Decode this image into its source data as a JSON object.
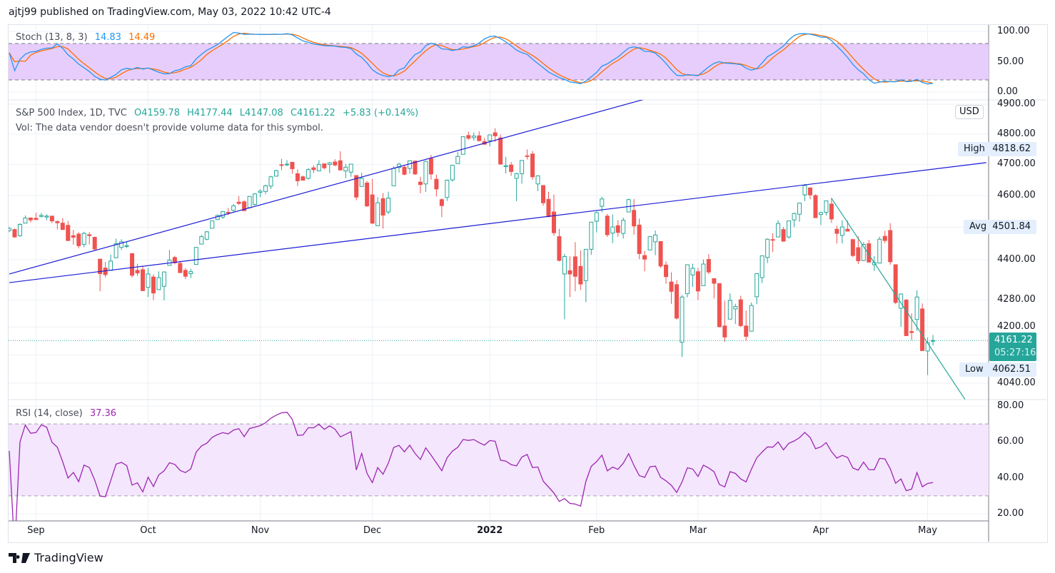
{
  "header": {
    "published": "ajtj99 published on TradingView.com, May 03, 2022 10:42 UTC-4"
  },
  "legend": {
    "symbol": "S&P 500 Index, 1D, TVC",
    "open": "O4159.78",
    "high": "H4177.44",
    "low": "L4147.08",
    "close": "C4161.22",
    "change": "+5.83 (+0.14%)",
    "volume_note": "Vol: The data vendor doesn't provide volume data for this symbol.",
    "stoch_label": "Stoch (13, 8, 3)",
    "stoch_k": "14.83",
    "stoch_d": "14.49",
    "rsi_label": "RSI (14, close)",
    "rsi_value": "37.36"
  },
  "price_axis": {
    "currency": "USD",
    "ticks": [
      "4900.00",
      "4800.00",
      "4700.00",
      "4600.00",
      "4400.00",
      "4280.00",
      "4200.00",
      "4040.00"
    ],
    "high_label": "High",
    "high_value": "4818.62",
    "avg_label": "Avg",
    "avg_value": "4501.84",
    "low_label": "Low",
    "low_value": "4062.51",
    "last_price": "4161.22",
    "countdown": "05:27:16"
  },
  "stoch_axis": {
    "ticks": [
      "100.00",
      "50.00",
      "0.00"
    ]
  },
  "rsi_axis": {
    "ticks": [
      "80.00",
      "60.00",
      "40.00",
      "20.00"
    ]
  },
  "time_axis": {
    "labels": [
      "Sep",
      "Oct",
      "Nov",
      "Dec",
      "2022",
      "Feb",
      "Mar",
      "Apr",
      "May"
    ]
  },
  "footer": {
    "brand": "TradingView"
  },
  "colors": {
    "up": "#26a69a",
    "down": "#ef5350",
    "stoch_k": "#2196f3",
    "stoch_d": "#ff6d00",
    "rsi": "#9c27b0",
    "trendline": "#1c1cd6",
    "trendline_green": "#26a69a"
  },
  "chart_data": {
    "type": "candlestick",
    "scale": "log",
    "indicators": [
      {
        "name": "Stoch",
        "params": [
          13,
          8,
          3
        ],
        "bands": [
          20,
          80
        ],
        "range": [
          0,
          100
        ]
      },
      {
        "name": "RSI",
        "params": [
          14
        ],
        "bands": [
          30,
          70
        ],
        "range": [
          20,
          80
        ]
      }
    ],
    "trendlines": [
      {
        "from": [
          "2021-08-25",
          4357
        ],
        "to": [
          "2022-02-14",
          4917
        ],
        "color": "#1c1cd6"
      },
      {
        "from": [
          "2021-08-25",
          4331
        ],
        "to": [
          "2022-05-17",
          4706
        ],
        "color": "#1c1cd6"
      },
      {
        "from": [
          "2022-04-05",
          4591
        ],
        "to": [
          "2022-05-11",
          3995
        ],
        "color": "#26a69a"
      }
    ],
    "candles_columns": [
      "date",
      "open",
      "high",
      "low",
      "close"
    ],
    "candles": [
      [
        "2021-08-25",
        4490,
        4502,
        4485,
        4496
      ],
      [
        "2021-08-26",
        4493,
        4496,
        4468,
        4470
      ],
      [
        "2021-08-27",
        4474,
        4513,
        4470,
        4509
      ],
      [
        "2021-08-30",
        4513,
        4537,
        4513,
        4529
      ],
      [
        "2021-08-31",
        4529,
        4531,
        4515,
        4523
      ],
      [
        "2021-09-01",
        4528,
        4545,
        4524,
        4524
      ],
      [
        "2021-09-02",
        4534,
        4545,
        4531,
        4537
      ],
      [
        "2021-09-03",
        4532,
        4541,
        4522,
        4535
      ],
      [
        "2021-09-07",
        4535,
        4535,
        4513,
        4520
      ],
      [
        "2021-09-08",
        4518,
        4521,
        4493,
        4514
      ],
      [
        "2021-09-09",
        4513,
        4529,
        4492,
        4493
      ],
      [
        "2021-09-10",
        4506,
        4520,
        4457,
        4459
      ],
      [
        "2021-09-13",
        4474,
        4492,
        4446,
        4469
      ],
      [
        "2021-09-14",
        4479,
        4485,
        4435,
        4443
      ],
      [
        "2021-09-15",
        4447,
        4486,
        4438,
        4481
      ],
      [
        "2021-09-16",
        4477,
        4485,
        4447,
        4474
      ],
      [
        "2021-09-17",
        4469,
        4471,
        4427,
        4433
      ],
      [
        "2021-09-20",
        4402,
        4402,
        4305,
        4358
      ],
      [
        "2021-09-21",
        4375,
        4394,
        4347,
        4355
      ],
      [
        "2021-09-22",
        4368,
        4416,
        4368,
        4396
      ],
      [
        "2021-09-23",
        4406,
        4465,
        4406,
        4449
      ],
      [
        "2021-09-24",
        4438,
        4463,
        4430,
        4455
      ],
      [
        "2021-09-27",
        4442,
        4457,
        4436,
        4443
      ],
      [
        "2021-09-28",
        4419,
        4419,
        4346,
        4353
      ],
      [
        "2021-09-29",
        4368,
        4388,
        4352,
        4360
      ],
      [
        "2021-09-30",
        4370,
        4382,
        4306,
        4307
      ],
      [
        "2021-10-01",
        4317,
        4375,
        4288,
        4357
      ],
      [
        "2021-10-04",
        4348,
        4356,
        4279,
        4300
      ],
      [
        "2021-10-05",
        4310,
        4365,
        4310,
        4346
      ],
      [
        "2021-10-06",
        4320,
        4365,
        4278,
        4363
      ],
      [
        "2021-10-07",
        4383,
        4430,
        4383,
        4399
      ],
      [
        "2021-10-08",
        4407,
        4412,
        4386,
        4391
      ],
      [
        "2021-10-11",
        4389,
        4397,
        4361,
        4361
      ],
      [
        "2021-10-12",
        4368,
        4375,
        4342,
        4350
      ],
      [
        "2021-10-13",
        4358,
        4373,
        4345,
        4364
      ],
      [
        "2021-10-14",
        4386,
        4439,
        4386,
        4438
      ],
      [
        "2021-10-15",
        4448,
        4476,
        4448,
        4471
      ],
      [
        "2021-10-18",
        4463,
        4489,
        4460,
        4486
      ],
      [
        "2021-10-19",
        4497,
        4520,
        4497,
        4520
      ],
      [
        "2021-10-20",
        4524,
        4540,
        4524,
        4537
      ],
      [
        "2021-10-21",
        4532,
        4551,
        4526,
        4549
      ],
      [
        "2021-10-22",
        4547,
        4560,
        4538,
        4545
      ],
      [
        "2021-10-25",
        4553,
        4573,
        4546,
        4567
      ],
      [
        "2021-10-26",
        4579,
        4598,
        4570,
        4575
      ],
      [
        "2021-10-27",
        4580,
        4585,
        4552,
        4552
      ],
      [
        "2021-10-28",
        4562,
        4597,
        4562,
        4597
      ],
      [
        "2021-10-29",
        4572,
        4608,
        4568,
        4605
      ],
      [
        "2021-11-01",
        4610,
        4620,
        4595,
        4614
      ],
      [
        "2021-11-02",
        4613,
        4635,
        4604,
        4631
      ],
      [
        "2021-11-03",
        4630,
        4663,
        4621,
        4660
      ],
      [
        "2021-11-04",
        4662,
        4683,
        4662,
        4680
      ],
      [
        "2021-11-05",
        4699,
        4718,
        4681,
        4697
      ],
      [
        "2021-11-08",
        4701,
        4714,
        4694,
        4701
      ],
      [
        "2021-11-09",
        4707,
        4708,
        4670,
        4686
      ],
      [
        "2021-11-10",
        4670,
        4684,
        4630,
        4647
      ],
      [
        "2021-11-11",
        4660,
        4664,
        4648,
        4649
      ],
      [
        "2021-11-12",
        4655,
        4688,
        4651,
        4683
      ],
      [
        "2021-11-15",
        4689,
        4697,
        4672,
        4683
      ],
      [
        "2021-11-16",
        4679,
        4714,
        4679,
        4700
      ],
      [
        "2021-11-17",
        4702,
        4702,
        4684,
        4689
      ],
      [
        "2021-11-18",
        4700,
        4708,
        4672,
        4705
      ],
      [
        "2021-11-19",
        4708,
        4717,
        4694,
        4698
      ],
      [
        "2021-11-22",
        4712,
        4743,
        4680,
        4682
      ],
      [
        "2021-11-23",
        4679,
        4702,
        4655,
        4691
      ],
      [
        "2021-11-24",
        4675,
        4702,
        4660,
        4701
      ],
      [
        "2021-11-26",
        4664,
        4664,
        4585,
        4595
      ],
      [
        "2021-11-29",
        4629,
        4673,
        4629,
        4655
      ],
      [
        "2021-11-30",
        4640,
        4647,
        4564,
        4567
      ],
      [
        "2021-12-01",
        4602,
        4653,
        4510,
        4513
      ],
      [
        "2021-12-02",
        4505,
        4595,
        4505,
        4577
      ],
      [
        "2021-12-03",
        4590,
        4608,
        4496,
        4538
      ],
      [
        "2021-12-06",
        4548,
        4612,
        4541,
        4592
      ],
      [
        "2021-12-07",
        4631,
        4694,
        4631,
        4687
      ],
      [
        "2021-12-08",
        4690,
        4705,
        4674,
        4701
      ],
      [
        "2021-12-09",
        4691,
        4695,
        4665,
        4668
      ],
      [
        "2021-12-10",
        4687,
        4713,
        4670,
        4712
      ],
      [
        "2021-12-13",
        4711,
        4711,
        4666,
        4669
      ],
      [
        "2021-12-14",
        4643,
        4660,
        4607,
        4635
      ],
      [
        "2021-12-15",
        4637,
        4712,
        4611,
        4710
      ],
      [
        "2021-12-16",
        4719,
        4731,
        4651,
        4669
      ],
      [
        "2021-12-17",
        4652,
        4667,
        4597,
        4621
      ],
      [
        "2021-12-20",
        4587,
        4591,
        4532,
        4568
      ],
      [
        "2021-12-21",
        4594,
        4651,
        4583,
        4649
      ],
      [
        "2021-12-22",
        4650,
        4698,
        4645,
        4697
      ],
      [
        "2021-12-23",
        4703,
        4741,
        4703,
        4726
      ],
      [
        "2021-12-27",
        4733,
        4792,
        4733,
        4791
      ],
      [
        "2021-12-28",
        4795,
        4808,
        4780,
        4786
      ],
      [
        "2021-12-29",
        4788,
        4805,
        4778,
        4793
      ],
      [
        "2021-12-30",
        4794,
        4809,
        4775,
        4778
      ],
      [
        "2021-12-31",
        4775,
        4787,
        4765,
        4766
      ],
      [
        "2022-01-03",
        4778,
        4797,
        4759,
        4797
      ],
      [
        "2022-01-04",
        4804,
        4819,
        4774,
        4794
      ],
      [
        "2022-01-05",
        4787,
        4798,
        4699,
        4701
      ],
      [
        "2022-01-06",
        4693,
        4725,
        4671,
        4696
      ],
      [
        "2022-01-07",
        4698,
        4708,
        4663,
        4677
      ],
      [
        "2022-01-10",
        4655,
        4673,
        4582,
        4670
      ],
      [
        "2022-01-11",
        4670,
        4714,
        4638,
        4713
      ],
      [
        "2022-01-12",
        4728,
        4749,
        4716,
        4726
      ],
      [
        "2022-01-13",
        4734,
        4744,
        4650,
        4660
      ],
      [
        "2022-01-14",
        4637,
        4665,
        4614,
        4663
      ],
      [
        "2022-01-18",
        4632,
        4632,
        4568,
        4577
      ],
      [
        "2022-01-19",
        4588,
        4612,
        4531,
        4533
      ],
      [
        "2022-01-20",
        4548,
        4603,
        4474,
        4483
      ],
      [
        "2022-01-21",
        4471,
        4495,
        4395,
        4398
      ],
      [
        "2022-01-24",
        4357,
        4418,
        4223,
        4410
      ],
      [
        "2022-01-25",
        4367,
        4411,
        4288,
        4357
      ],
      [
        "2022-01-26",
        4409,
        4454,
        4305,
        4350
      ],
      [
        "2022-01-27",
        4380,
        4429,
        4309,
        4327
      ],
      [
        "2022-01-28",
        4337,
        4432,
        4273,
        4432
      ],
      [
        "2022-01-31",
        4432,
        4517,
        4415,
        4516
      ],
      [
        "2022-02-01",
        4519,
        4550,
        4484,
        4546
      ],
      [
        "2022-02-02",
        4566,
        4596,
        4547,
        4589
      ],
      [
        "2022-02-03",
        4535,
        4542,
        4470,
        4477
      ],
      [
        "2022-02-04",
        4482,
        4540,
        4451,
        4501
      ],
      [
        "2022-02-07",
        4505,
        4522,
        4471,
        4484
      ],
      [
        "2022-02-08",
        4481,
        4530,
        4465,
        4522
      ],
      [
        "2022-02-09",
        4548,
        4590,
        4548,
        4587
      ],
      [
        "2022-02-10",
        4553,
        4589,
        4477,
        4504
      ],
      [
        "2022-02-11",
        4507,
        4527,
        4402,
        4419
      ],
      [
        "2022-02-14",
        4413,
        4427,
        4365,
        4402
      ],
      [
        "2022-02-15",
        4430,
        4473,
        4430,
        4471
      ],
      [
        "2022-02-16",
        4455,
        4490,
        4414,
        4476
      ],
      [
        "2022-02-17",
        4456,
        4456,
        4375,
        4381
      ],
      [
        "2022-02-18",
        4384,
        4395,
        4328,
        4349
      ],
      [
        "2022-02-22",
        4333,
        4362,
        4268,
        4305
      ],
      [
        "2022-02-23",
        4325,
        4338,
        4222,
        4226
      ],
      [
        "2022-02-24",
        4156,
        4294,
        4114,
        4288
      ],
      [
        "2022-02-25",
        4298,
        4385,
        4287,
        4385
      ],
      [
        "2022-02-28",
        4354,
        4388,
        4318,
        4374
      ],
      [
        "2022-03-01",
        4364,
        4375,
        4279,
        4306
      ],
      [
        "2022-03-02",
        4322,
        4401,
        4322,
        4387
      ],
      [
        "2022-03-03",
        4401,
        4417,
        4356,
        4363
      ],
      [
        "2022-03-04",
        4343,
        4343,
        4284,
        4329
      ],
      [
        "2022-03-07",
        4328,
        4328,
        4199,
        4201
      ],
      [
        "2022-03-08",
        4203,
        4277,
        4157,
        4171
      ],
      [
        "2022-03-09",
        4223,
        4299,
        4223,
        4278
      ],
      [
        "2022-03-10",
        4253,
        4268,
        4209,
        4260
      ],
      [
        "2022-03-11",
        4280,
        4292,
        4200,
        4204
      ],
      [
        "2022-03-14",
        4203,
        4248,
        4161,
        4173
      ],
      [
        "2022-03-15",
        4188,
        4272,
        4187,
        4263
      ],
      [
        "2022-03-16",
        4289,
        4358,
        4267,
        4358
      ],
      [
        "2022-03-17",
        4346,
        4413,
        4330,
        4412
      ],
      [
        "2022-03-18",
        4407,
        4466,
        4390,
        4463
      ],
      [
        "2022-03-21",
        4462,
        4481,
        4424,
        4461
      ],
      [
        "2022-03-22",
        4470,
        4522,
        4470,
        4512
      ],
      [
        "2022-03-23",
        4493,
        4501,
        4455,
        4457
      ],
      [
        "2022-03-24",
        4470,
        4521,
        4465,
        4520
      ],
      [
        "2022-03-25",
        4523,
        4546,
        4501,
        4543
      ],
      [
        "2022-03-28",
        4541,
        4576,
        4517,
        4576
      ],
      [
        "2022-03-29",
        4602,
        4637,
        4582,
        4632
      ],
      [
        "2022-03-30",
        4624,
        4627,
        4588,
        4602
      ],
      [
        "2022-03-31",
        4600,
        4604,
        4530,
        4530
      ],
      [
        "2022-04-01",
        4540,
        4549,
        4507,
        4546
      ],
      [
        "2022-04-04",
        4547,
        4584,
        4537,
        4583
      ],
      [
        "2022-04-05",
        4573,
        4593,
        4514,
        4526
      ],
      [
        "2022-04-06",
        4494,
        4504,
        4450,
        4481
      ],
      [
        "2022-04-07",
        4475,
        4522,
        4450,
        4501
      ],
      [
        "2022-04-08",
        4494,
        4521,
        4488,
        4488
      ],
      [
        "2022-04-11",
        4462,
        4464,
        4408,
        4413
      ],
      [
        "2022-04-12",
        4437,
        4472,
        4387,
        4397
      ],
      [
        "2022-04-13",
        4398,
        4454,
        4396,
        4447
      ],
      [
        "2022-04-14",
        4449,
        4461,
        4392,
        4393
      ],
      [
        "2022-04-18",
        4385,
        4411,
        4366,
        4392
      ],
      [
        "2022-04-19",
        4390,
        4471,
        4390,
        4463
      ],
      [
        "2022-04-20",
        4472,
        4489,
        4451,
        4459
      ],
      [
        "2022-04-21",
        4490,
        4513,
        4385,
        4394
      ],
      [
        "2022-04-22",
        4385,
        4386,
        4267,
        4272
      ],
      [
        "2022-04-25",
        4255,
        4299,
        4201,
        4297
      ],
      [
        "2022-04-26",
        4279,
        4282,
        4175,
        4175
      ],
      [
        "2022-04-27",
        4187,
        4240,
        4162,
        4184
      ],
      [
        "2022-04-28",
        4222,
        4308,
        4189,
        4288
      ],
      [
        "2022-04-29",
        4253,
        4269,
        4132,
        4132
      ],
      [
        "2022-05-02",
        4131,
        4170,
        4063,
        4155
      ],
      [
        "2022-05-03",
        4160,
        4177,
        4147,
        4161
      ]
    ]
  }
}
